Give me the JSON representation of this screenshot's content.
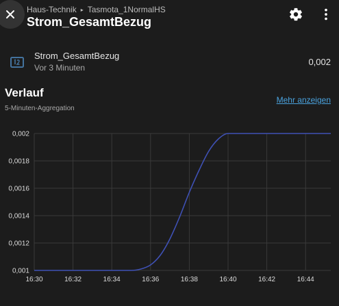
{
  "header": {
    "breadcrumb": [
      "Haus-Technik",
      "Tasmota_1NormalHS"
    ],
    "breadcrumb_separator": "▸",
    "title": "Strom_GesamtBezug",
    "icons": [
      "close-icon",
      "gear-icon",
      "more-vert-icon"
    ]
  },
  "entity": {
    "name": "Strom_GesamtBezug",
    "last_changed": "Vor 3 Minuten",
    "value": "0,002",
    "icon": "numeric-icon"
  },
  "history": {
    "title": "Verlauf",
    "subtitle": "5-Minuten-Aggregation",
    "more_label": "Mehr anzeigen"
  },
  "colors": {
    "background": "#1c1c1c",
    "line": "#3f51b5",
    "link": "#4aa3df",
    "icon_accent": "#44739e"
  },
  "chart_data": {
    "type": "line",
    "x": [
      "16:30",
      "16:31",
      "16:32",
      "16:33",
      "16:34",
      "16:35",
      "16:35.5",
      "16:36",
      "16:36.5",
      "16:37",
      "16:37.5",
      "16:38",
      "16:38.5",
      "16:39",
      "16:39.5",
      "16:40",
      "16:41",
      "16:42",
      "16:43",
      "16:44",
      "16:45"
    ],
    "x_minutes": [
      0,
      1,
      2,
      3,
      4,
      5,
      5.5,
      6,
      6.5,
      7,
      7.5,
      8,
      8.5,
      9,
      9.5,
      10,
      11,
      12,
      13,
      14,
      15.3
    ],
    "series": [
      {
        "values": [
          0.001,
          0.001,
          0.001,
          0.001,
          0.001,
          0.001,
          0.00101,
          0.00104,
          0.00111,
          0.00123,
          0.00139,
          0.00157,
          0.00173,
          0.00187,
          0.00196,
          0.002,
          0.002,
          0.002,
          0.002,
          0.002,
          0.002
        ]
      }
    ],
    "x_tick_labels": [
      "16:30",
      "16:32",
      "16:34",
      "16:36",
      "16:38",
      "16:40",
      "16:42",
      "16:44"
    ],
    "y_tick_labels": [
      "0,001",
      "0,0012",
      "0,0014",
      "0,0016",
      "0,0018",
      "0,002"
    ],
    "ylim": [
      0.001,
      0.002
    ],
    "xlim_minutes": [
      0,
      15.3
    ],
    "grid": true,
    "xlabel": "",
    "ylabel": ""
  }
}
